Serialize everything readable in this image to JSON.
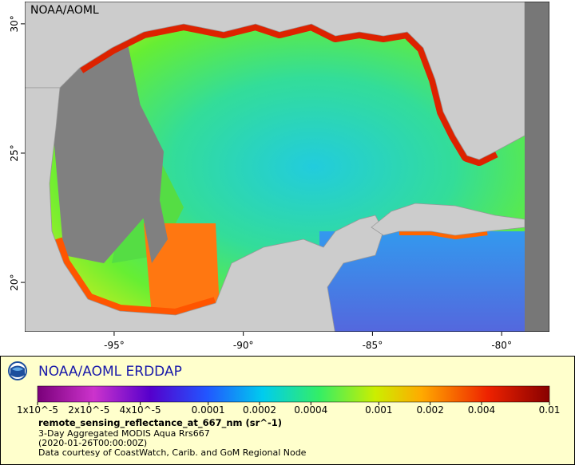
{
  "map": {
    "watermark": "NOAA/AOML",
    "lon_range": [
      -98.46,
      -78.15
    ],
    "lat_range": [
      18.09,
      30.86
    ],
    "lon_ticks": [
      {
        "value": -95,
        "label": "-95°"
      },
      {
        "value": -90,
        "label": "-90°"
      },
      {
        "value": -85,
        "label": "-85°"
      },
      {
        "value": -80,
        "label": "-80°"
      }
    ],
    "lat_ticks": [
      {
        "value": 20,
        "label": "20°"
      },
      {
        "value": 25,
        "label": "25°"
      },
      {
        "value": 30,
        "label": "30°"
      }
    ]
  },
  "legend": {
    "title": "NOAA/AOML ERDDAP",
    "colorbar_range": [
      1e-05,
      0.01
    ],
    "log_scale": true,
    "colorbar_ticks": [
      {
        "value": 1e-05,
        "label": "1x10^-5"
      },
      {
        "value": 2e-05,
        "label": "2x10^-5"
      },
      {
        "value": 4e-05,
        "label": "4x10^-5"
      },
      {
        "value": 0.0001,
        "label": "0.0001"
      },
      {
        "value": 0.0002,
        "label": "0.0002"
      },
      {
        "value": 0.0004,
        "label": "0.0004"
      },
      {
        "value": 0.001,
        "label": "0.001"
      },
      {
        "value": 0.002,
        "label": "0.002"
      },
      {
        "value": 0.004,
        "label": "0.004"
      },
      {
        "value": 0.01,
        "label": "0.01"
      }
    ],
    "variable": "remote_sensing_reflectance_at_667_nm (sr^-1)",
    "dataset": "3-Day Aggregated MODIS Aqua Rrs667",
    "time": "(2020-01-26T00:00:00Z)",
    "credit": "Data courtesy of CoastWatch, Carib. and GoM Regional Node"
  }
}
